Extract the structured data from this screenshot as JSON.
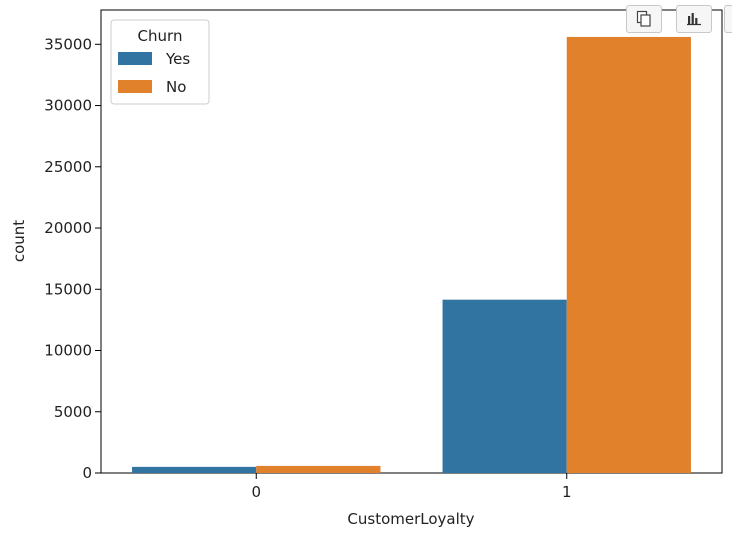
{
  "toolbar": {
    "buttons": [
      {
        "name": "copy-icon"
      },
      {
        "name": "bar-chart-icon"
      },
      {
        "name": "more-icon"
      }
    ]
  },
  "colors": {
    "Yes": "#3274a1",
    "No": "#e1812c"
  },
  "chart_data": {
    "type": "bar",
    "title": "",
    "xlabel": "CustomerLoyalty",
    "ylabel": "count",
    "categories": [
      "0",
      "1"
    ],
    "series": [
      {
        "name": "Yes",
        "values": [
          500,
          14150
        ]
      },
      {
        "name": "No",
        "values": [
          580,
          35600
        ]
      }
    ],
    "ylim": [
      0,
      37800
    ],
    "yticks": [
      0,
      5000,
      10000,
      15000,
      20000,
      25000,
      30000,
      35000
    ],
    "legend": {
      "title": "Churn",
      "position": "top-left"
    },
    "grid": false
  }
}
